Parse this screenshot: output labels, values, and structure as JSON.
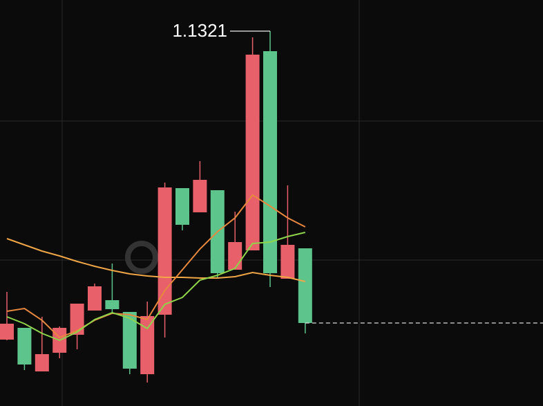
{
  "chart_data": {
    "type": "candlestick",
    "categories": [
      null,
      null,
      null,
      null,
      null,
      null,
      null,
      null,
      null,
      null,
      null,
      null,
      null,
      null,
      null,
      null,
      null,
      null
    ],
    "open": [
      1.0875,
      1.0892,
      1.0829,
      1.0856,
      1.0882,
      1.0917,
      1.0932,
      1.0915,
      1.0825,
      1.0911,
      1.1094,
      1.1059,
      1.1091,
      1.0976,
      1.1004,
      1.1292,
      1.0963,
      1.1007
    ],
    "high": [
      1.0944,
      1.0892,
      1.0908,
      1.0894,
      1.0927,
      1.0956,
      1.0985,
      1.0915,
      1.093,
      1.1102,
      1.1094,
      1.1133,
      1.1091,
      1.106,
      1.1312,
      1.1321,
      1.1098,
      1.1007
    ],
    "low": [
      1.0874,
      1.0831,
      1.0829,
      1.0848,
      1.0861,
      1.0917,
      1.0914,
      1.0825,
      1.0813,
      1.0878,
      1.1033,
      1.1059,
      1.0963,
      1.0976,
      1.1004,
      1.0951,
      1.0963,
      1.0884
    ],
    "close": [
      1.0898,
      1.0839,
      1.0854,
      1.0892,
      1.0927,
      1.0952,
      1.0919,
      1.0833,
      1.0909,
      1.1095,
      1.1041,
      1.1106,
      1.0971,
      1.1016,
      1.1287,
      1.0971,
      1.1012,
      1.0899
    ],
    "up_color": "#e8606a",
    "down_color": "#5dc58c",
    "series": [
      {
        "color": "#f0a646",
        "values": [
          1.1021,
          1.1012,
          1.1003,
          1.0996,
          1.0988,
          1.0981,
          1.0975,
          1.097,
          1.0967,
          1.0965,
          1.0965,
          1.0964,
          1.0964,
          1.0966,
          1.0972,
          1.0968,
          1.0965,
          1.0959
        ]
      },
      {
        "color": "#e8883f",
        "values": [
          1.0916,
          1.092,
          1.0903,
          1.0878,
          1.0888,
          1.0903,
          1.0913,
          1.0911,
          1.0904,
          1.0946,
          1.0976,
          1.1006,
          1.1031,
          1.1051,
          1.1084,
          1.1068,
          1.1051,
          1.1038
        ]
      },
      {
        "color": "#8fd44a",
        "values": [
          1.0908,
          1.0898,
          1.0884,
          1.0874,
          1.0886,
          1.0904,
          1.0914,
          1.0906,
          1.0891,
          1.0926,
          1.0936,
          1.0961,
          1.0968,
          1.0978,
          1.1014,
          1.1016,
          1.1024,
          1.103
        ]
      }
    ],
    "ylim": [
      1.0779,
      1.1366
    ]
  }
}
